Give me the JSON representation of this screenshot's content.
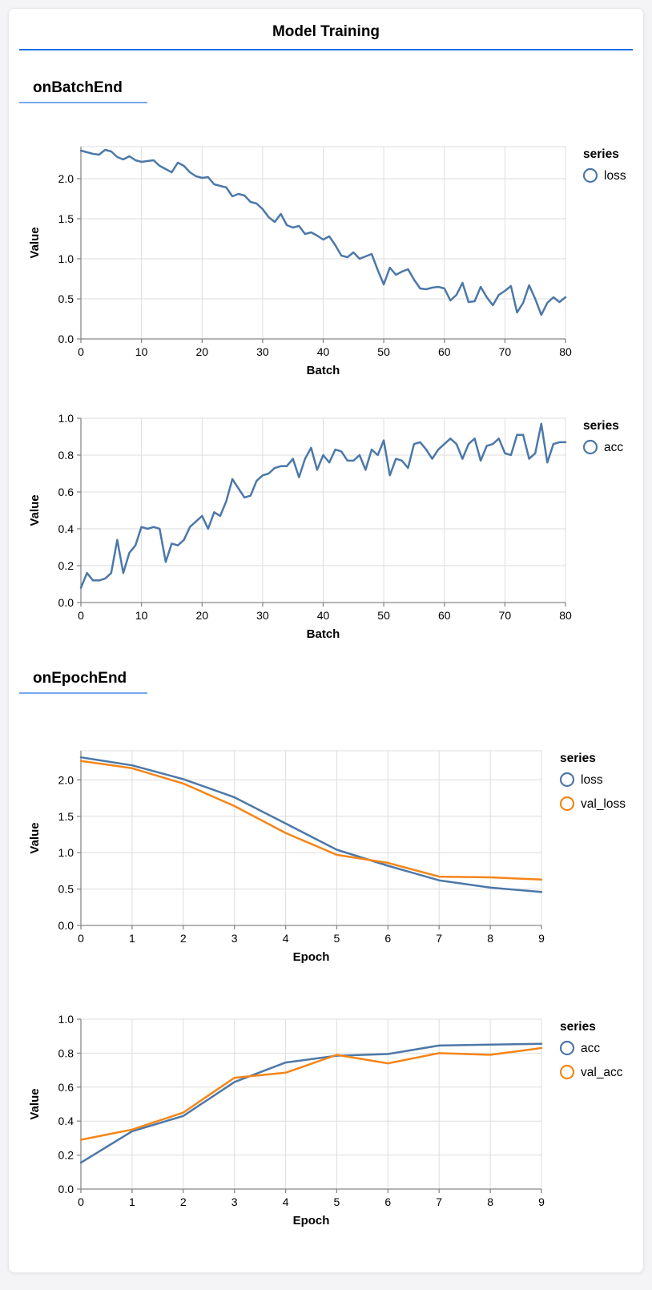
{
  "page": {
    "title": "Model Training"
  },
  "sections": [
    {
      "label": "onBatchEnd"
    },
    {
      "label": "onEpochEnd"
    }
  ],
  "colors": {
    "page_bg": "#f4f4f6",
    "card_bg": "#ffffff",
    "title_rule": "#1a6fe8",
    "section_rule": "#78a8ee",
    "series_blue": "#4c78a8",
    "series_orange": "#f58518",
    "grid": "#dddddd",
    "axis": "#888888",
    "text": "#000000"
  },
  "chart_data": [
    {
      "type": "line",
      "section": "onBatchEnd",
      "xlabel": "Batch",
      "ylabel": "Value",
      "legend_title": "series",
      "legend_position": "right",
      "grid": true,
      "xlim": [
        0,
        80
      ],
      "ylim": [
        0,
        2.4
      ],
      "xticks": [
        0,
        10,
        20,
        30,
        40,
        50,
        60,
        70,
        80
      ],
      "yticks": [
        0,
        0.5,
        1.0,
        1.5,
        2.0
      ],
      "x": [
        0,
        1,
        2,
        3,
        4,
        5,
        6,
        7,
        8,
        9,
        10,
        11,
        12,
        13,
        14,
        15,
        16,
        17,
        18,
        19,
        20,
        21,
        22,
        23,
        24,
        25,
        26,
        27,
        28,
        29,
        30,
        31,
        32,
        33,
        34,
        35,
        36,
        37,
        38,
        39,
        40,
        41,
        42,
        43,
        44,
        45,
        46,
        47,
        48,
        49,
        50,
        51,
        52,
        53,
        54,
        55,
        56,
        57,
        58,
        59,
        60,
        61,
        62,
        63,
        64,
        65,
        66,
        67,
        68,
        69,
        70,
        71,
        72,
        73,
        74,
        75,
        76,
        77,
        78,
        79,
        80
      ],
      "series": [
        {
          "name": "loss",
          "color": "#4c78a8",
          "values": [
            2.35,
            2.33,
            2.31,
            2.3,
            2.36,
            2.34,
            2.27,
            2.24,
            2.28,
            2.23,
            2.21,
            2.22,
            2.23,
            2.16,
            2.12,
            2.08,
            2.2,
            2.16,
            2.08,
            2.03,
            2.01,
            2.02,
            1.93,
            1.91,
            1.89,
            1.78,
            1.81,
            1.79,
            1.71,
            1.69,
            1.62,
            1.52,
            1.46,
            1.56,
            1.42,
            1.39,
            1.41,
            1.31,
            1.33,
            1.29,
            1.24,
            1.28,
            1.17,
            1.04,
            1.02,
            1.08,
            1.0,
            1.03,
            1.06,
            0.86,
            0.68,
            0.89,
            0.8,
            0.84,
            0.87,
            0.74,
            0.63,
            0.62,
            0.64,
            0.65,
            0.63,
            0.48,
            0.55,
            0.7,
            0.46,
            0.47,
            0.65,
            0.52,
            0.42,
            0.55,
            0.6,
            0.66,
            0.33,
            0.45,
            0.67,
            0.5,
            0.3,
            0.45,
            0.52,
            0.46,
            0.52
          ]
        }
      ]
    },
    {
      "type": "line",
      "section": "onBatchEnd",
      "xlabel": "Batch",
      "ylabel": "Value",
      "legend_title": "series",
      "legend_position": "right",
      "grid": true,
      "xlim": [
        0,
        80
      ],
      "ylim": [
        0,
        1.0
      ],
      "xticks": [
        0,
        10,
        20,
        30,
        40,
        50,
        60,
        70,
        80
      ],
      "yticks": [
        0,
        0.2,
        0.4,
        0.6,
        0.8,
        1.0
      ],
      "x": [
        0,
        1,
        2,
        3,
        4,
        5,
        6,
        7,
        8,
        9,
        10,
        11,
        12,
        13,
        14,
        15,
        16,
        17,
        18,
        19,
        20,
        21,
        22,
        23,
        24,
        25,
        26,
        27,
        28,
        29,
        30,
        31,
        32,
        33,
        34,
        35,
        36,
        37,
        38,
        39,
        40,
        41,
        42,
        43,
        44,
        45,
        46,
        47,
        48,
        49,
        50,
        51,
        52,
        53,
        54,
        55,
        56,
        57,
        58,
        59,
        60,
        61,
        62,
        63,
        64,
        65,
        66,
        67,
        68,
        69,
        70,
        71,
        72,
        73,
        74,
        75,
        76,
        77,
        78,
        79,
        80
      ],
      "series": [
        {
          "name": "acc",
          "color": "#4c78a8",
          "values": [
            0.08,
            0.16,
            0.12,
            0.12,
            0.13,
            0.16,
            0.34,
            0.16,
            0.27,
            0.31,
            0.41,
            0.4,
            0.41,
            0.4,
            0.22,
            0.32,
            0.31,
            0.34,
            0.41,
            0.44,
            0.47,
            0.4,
            0.49,
            0.47,
            0.55,
            0.67,
            0.62,
            0.57,
            0.58,
            0.66,
            0.69,
            0.7,
            0.73,
            0.74,
            0.74,
            0.78,
            0.68,
            0.78,
            0.84,
            0.72,
            0.8,
            0.76,
            0.83,
            0.82,
            0.77,
            0.77,
            0.8,
            0.72,
            0.83,
            0.8,
            0.88,
            0.69,
            0.78,
            0.77,
            0.73,
            0.86,
            0.87,
            0.83,
            0.78,
            0.83,
            0.86,
            0.89,
            0.86,
            0.78,
            0.86,
            0.89,
            0.77,
            0.85,
            0.86,
            0.89,
            0.81,
            0.8,
            0.91,
            0.91,
            0.78,
            0.81,
            0.97,
            0.76,
            0.86,
            0.87,
            0.87
          ]
        }
      ]
    },
    {
      "type": "line",
      "section": "onEpochEnd",
      "xlabel": "Epoch",
      "ylabel": "Value",
      "legend_title": "series",
      "legend_position": "right",
      "grid": true,
      "xlim": [
        0,
        9
      ],
      "ylim": [
        0,
        2.4
      ],
      "xticks": [
        0,
        1,
        2,
        3,
        4,
        5,
        6,
        7,
        8,
        9
      ],
      "yticks": [
        0,
        0.5,
        1.0,
        1.5,
        2.0
      ],
      "x": [
        0,
        1,
        2,
        3,
        4,
        5,
        6,
        7,
        8,
        9
      ],
      "series": [
        {
          "name": "loss",
          "color": "#4c78a8",
          "values": [
            2.31,
            2.2,
            2.01,
            1.76,
            1.4,
            1.04,
            0.82,
            0.62,
            0.52,
            0.46
          ]
        },
        {
          "name": "val_loss",
          "color": "#f58518",
          "values": [
            2.26,
            2.16,
            1.95,
            1.64,
            1.27,
            0.97,
            0.86,
            0.67,
            0.66,
            0.63
          ]
        }
      ]
    },
    {
      "type": "line",
      "section": "onEpochEnd",
      "xlabel": "Epoch",
      "ylabel": "Value",
      "legend_title": "series",
      "legend_position": "right",
      "grid": true,
      "xlim": [
        0,
        9
      ],
      "ylim": [
        0,
        1.0
      ],
      "xticks": [
        0,
        1,
        2,
        3,
        4,
        5,
        6,
        7,
        8,
        9
      ],
      "yticks": [
        0,
        0.2,
        0.4,
        0.6,
        0.8,
        1.0
      ],
      "x": [
        0,
        1,
        2,
        3,
        4,
        5,
        6,
        7,
        8,
        9
      ],
      "series": [
        {
          "name": "acc",
          "color": "#4c78a8",
          "values": [
            0.155,
            0.34,
            0.43,
            0.63,
            0.745,
            0.785,
            0.795,
            0.845,
            0.85,
            0.855
          ]
        },
        {
          "name": "val_acc",
          "color": "#f58518",
          "values": [
            0.29,
            0.35,
            0.45,
            0.655,
            0.685,
            0.79,
            0.74,
            0.8,
            0.79,
            0.83
          ]
        }
      ]
    }
  ]
}
